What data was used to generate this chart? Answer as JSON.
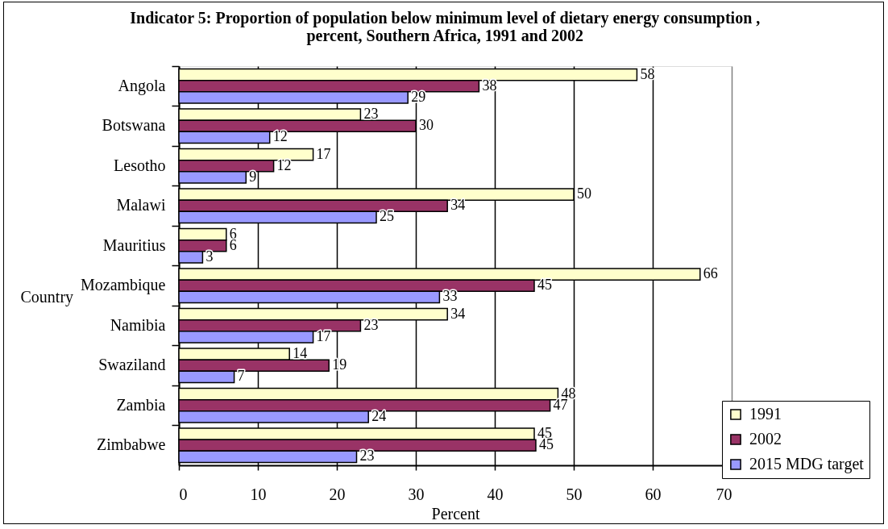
{
  "chart_data": {
    "type": "bar",
    "orientation": "horizontal",
    "title": "Indicator 5: Proportion of population below minimum level of dietary energy consumption ,\npercent, Southern Africa, 1991 and 2002",
    "xlabel": "Percent",
    "ylabel": "Country",
    "categories": [
      "Angola",
      "Botswana",
      "Lesotho",
      "Malawi",
      "Mauritius",
      "Mozambique",
      "Namibia",
      "Swaziland",
      "Zambia",
      "Zimbabwe"
    ],
    "series": [
      {
        "name": "1991",
        "color": "#ffffcc",
        "values": [
          58,
          23,
          17,
          50,
          6,
          66,
          34,
          14,
          48,
          45
        ],
        "value_labels": [
          "58",
          "23",
          "17",
          "50",
          "6",
          "66",
          "34",
          "14",
          "48",
          "45"
        ]
      },
      {
        "name": "2002",
        "color": "#993366",
        "values": [
          38,
          30,
          12,
          34,
          6,
          45,
          23,
          19,
          47,
          45.2
        ],
        "value_labels": [
          "38",
          "30",
          "12",
          "34",
          "6",
          "45",
          "23",
          "19",
          "47",
          "45"
        ]
      },
      {
        "name": "2015 MDG target",
        "color": "#9999ff",
        "values": [
          29,
          11.5,
          8.5,
          25,
          3,
          33,
          17,
          7,
          24,
          22.5
        ],
        "value_labels": [
          "29",
          "12",
          "9",
          "25",
          "3",
          "33",
          "17",
          "7",
          "24",
          "23"
        ]
      }
    ],
    "xlim": [
      0,
      70
    ],
    "xticks": [
      0,
      10,
      20,
      30,
      40,
      50,
      60,
      70
    ],
    "grid": "x",
    "legend": "bottom right"
  }
}
